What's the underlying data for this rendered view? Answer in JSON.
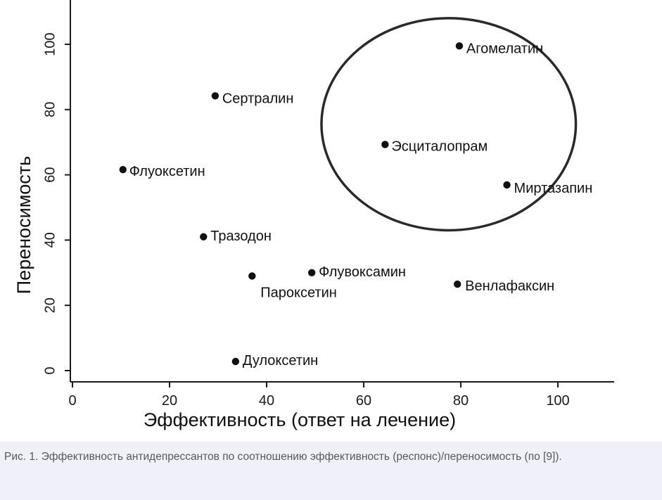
{
  "chart_data": {
    "type": "scatter",
    "xlabel": "Эффективность (ответ на лечение)",
    "ylabel": "Переносимость",
    "xlim": [
      -1,
      113
    ],
    "ylim": [
      -3,
      113
    ],
    "x_ticks": [
      0,
      20,
      40,
      60,
      80,
      100
    ],
    "y_ticks": [
      0,
      20,
      40,
      60,
      80,
      100
    ],
    "grid": false,
    "points": [
      {
        "label": "Агомелатин",
        "x": 79.7,
        "y": 99.5
      },
      {
        "label": "Сертралин",
        "x": 29.4,
        "y": 84.2
      },
      {
        "label": "Эсциталопрам",
        "x": 64.4,
        "y": 69.3
      },
      {
        "label": "Флуоксетин",
        "x": 10.4,
        "y": 61.6
      },
      {
        "label": "Миртазапин",
        "x": 89.5,
        "y": 56.9
      },
      {
        "label": "Тразодон",
        "x": 27.0,
        "y": 41.0
      },
      {
        "label": "Флувоксамин",
        "x": 49.3,
        "y": 30.0
      },
      {
        "label": "Пароксетин",
        "x": 37.0,
        "y": 29.0
      },
      {
        "label": "Венлафаксин",
        "x": 79.3,
        "y": 26.5
      },
      {
        "label": "Дулоксетин",
        "x": 33.6,
        "y": 2.8
      }
    ],
    "highlight_ellipse": {
      "center_x": 77.5,
      "center_y": 75.5,
      "radius_x": 26.2,
      "radius_y": 32.5
    }
  },
  "caption": "Рис. 1. Эффективность антидепрессантов по соотношению эффективность (респонс)/переносимость (по [9])."
}
